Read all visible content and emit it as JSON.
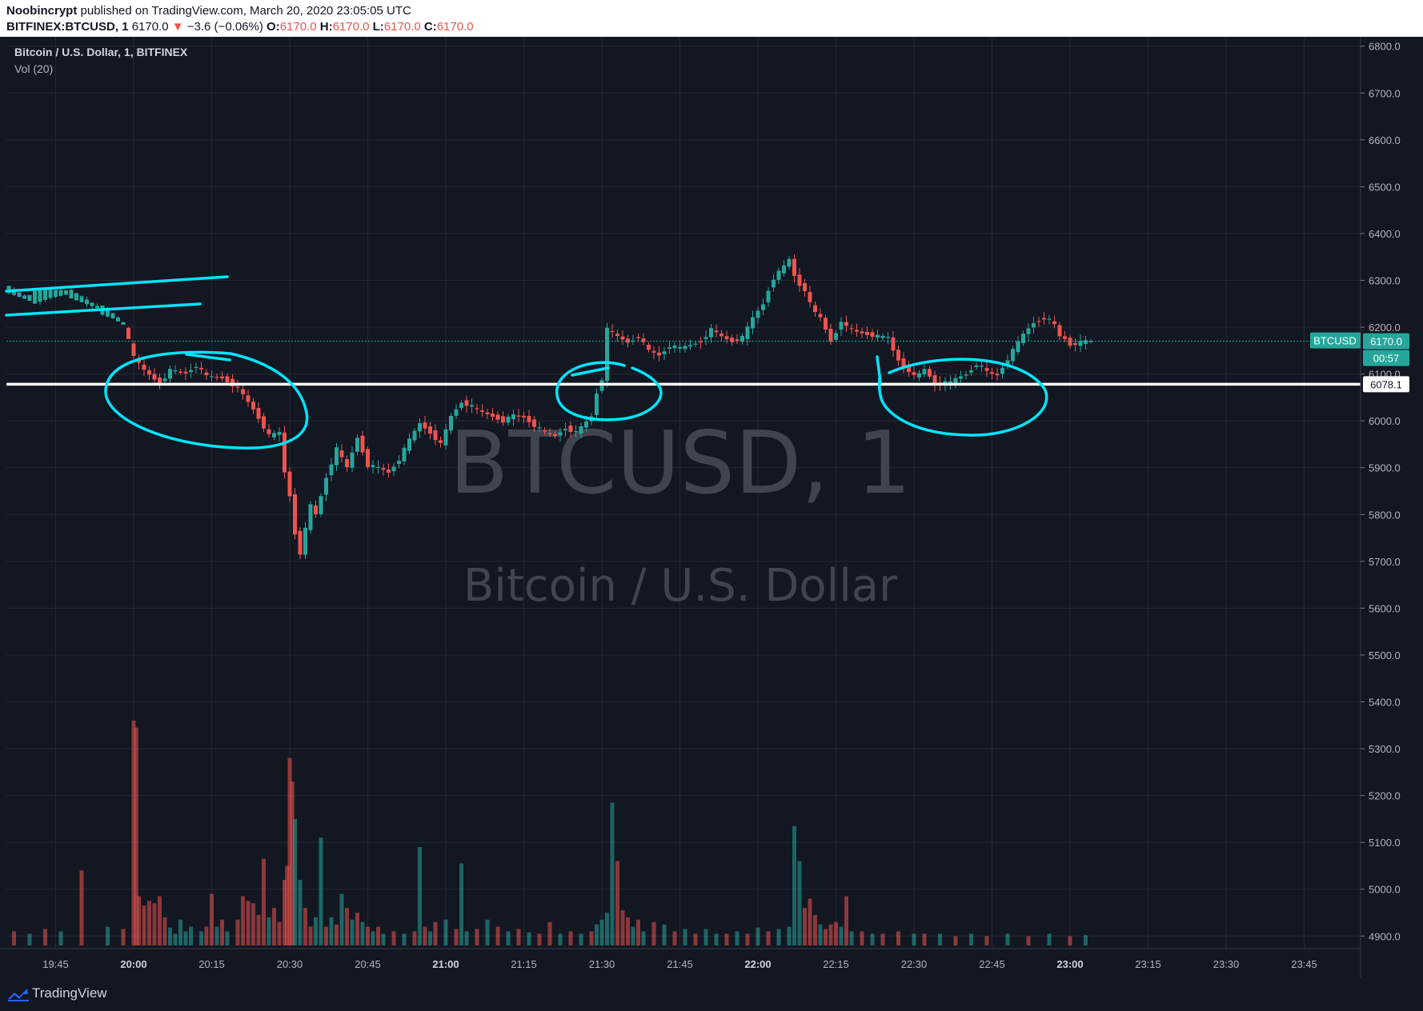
{
  "header": {
    "author": "Noobincrypt",
    "published": "published on TradingView.com, March 20, 2020 23:05:05 UTC",
    "symbol": "BITFINEX:BTCUSD, 1",
    "last": "6170.0",
    "arrow": "▼",
    "change": "−3.6 (−0.06%)",
    "o_label": "O:",
    "o": "6170.0",
    "h_label": "H:",
    "h": "6170.0",
    "l_label": "L:",
    "l": "6170.0",
    "c_label": "C:",
    "c": "6170.0"
  },
  "legend": {
    "main": "Bitcoin / U.S. Dollar, 1, BITFINEX",
    "volume": "Vol (20)"
  },
  "watermark": {
    "line1": "BTCUSD, 1",
    "line2": "Bitcoin / U.S. Dollar"
  },
  "price_labels": {
    "symbol_tag": "BTCUSD",
    "last_price": "6170.0",
    "countdown": "00:57",
    "line_price": "6078.1"
  },
  "footer": {
    "brand": "TradingView"
  },
  "colors": {
    "background": "#131722",
    "grid": "#242936",
    "up": "#26a69a",
    "down": "#ef5350",
    "annotation": "#00e5ff",
    "hline": "#ffffff"
  },
  "chart_data": {
    "type": "candlestick",
    "interval": "1 minute",
    "y_ticks": [
      "6800.0",
      "6700.0",
      "6600.0",
      "6500.0",
      "6400.0",
      "6300.0",
      "6200.0",
      "6100.0",
      "6000.0",
      "5900.0",
      "5800.0",
      "5700.0",
      "5600.0",
      "5500.0",
      "5400.0",
      "5300.0",
      "5200.0",
      "5100.0",
      "5000.0",
      "4900.0"
    ],
    "ylim": [
      4880,
      6820
    ],
    "x_ticks": [
      {
        "label": "19:45",
        "m": -15,
        "bold": false
      },
      {
        "label": "20:00",
        "m": 0,
        "bold": true
      },
      {
        "label": "20:15",
        "m": 15,
        "bold": false
      },
      {
        "label": "20:30",
        "m": 30,
        "bold": false
      },
      {
        "label": "20:45",
        "m": 45,
        "bold": false
      },
      {
        "label": "21:00",
        "m": 60,
        "bold": true
      },
      {
        "label": "21:15",
        "m": 75,
        "bold": false
      },
      {
        "label": "21:30",
        "m": 90,
        "bold": false
      },
      {
        "label": "21:45",
        "m": 105,
        "bold": false
      },
      {
        "label": "22:00",
        "m": 120,
        "bold": true
      },
      {
        "label": "22:15",
        "m": 135,
        "bold": false
      },
      {
        "label": "22:30",
        "m": 150,
        "bold": false
      },
      {
        "label": "22:45",
        "m": 165,
        "bold": false
      },
      {
        "label": "23:00",
        "m": 180,
        "bold": true
      },
      {
        "label": "23:15",
        "m": 195,
        "bold": false
      },
      {
        "label": "23:30",
        "m": 210,
        "bold": false
      },
      {
        "label": "23:45",
        "m": 225,
        "bold": false
      }
    ],
    "price_path": [
      [
        -24,
        6285
      ],
      [
        -20,
        6262
      ],
      [
        -16,
        6272
      ],
      [
        -12,
        6275
      ],
      [
        -9,
        6258
      ],
      [
        -4,
        6230
      ],
      [
        -1,
        6205
      ],
      [
        1,
        6135
      ],
      [
        3,
        6108
      ],
      [
        6,
        6080
      ],
      [
        8,
        6108
      ],
      [
        11,
        6102
      ],
      [
        13,
        6118
      ],
      [
        15,
        6095
      ],
      [
        18,
        6092
      ],
      [
        21,
        6070
      ],
      [
        24,
        6025
      ],
      [
        27,
        5968
      ],
      [
        29,
        5975
      ],
      [
        30,
        5890
      ],
      [
        31,
        5840
      ],
      [
        32,
        5760
      ],
      [
        33,
        5718
      ],
      [
        35,
        5820
      ],
      [
        36,
        5800
      ],
      [
        38,
        5880
      ],
      [
        40,
        5940
      ],
      [
        42,
        5900
      ],
      [
        44,
        5965
      ],
      [
        46,
        5905
      ],
      [
        48,
        5900
      ],
      [
        50,
        5890
      ],
      [
        52,
        5918
      ],
      [
        54,
        5960
      ],
      [
        56,
        5995
      ],
      [
        58,
        5975
      ],
      [
        60,
        5950
      ],
      [
        62,
        6010
      ],
      [
        64,
        6040
      ],
      [
        66,
        6030
      ],
      [
        68,
        6018
      ],
      [
        70,
        6010
      ],
      [
        72,
        6000
      ],
      [
        74,
        6012
      ],
      [
        76,
        6008
      ],
      [
        78,
        5990
      ],
      [
        80,
        5975
      ],
      [
        82,
        5968
      ],
      [
        84,
        5985
      ],
      [
        86,
        5975
      ],
      [
        88,
        5998
      ],
      [
        89,
        6010
      ],
      [
        90,
        6060
      ],
      [
        91,
        6090
      ],
      [
        92,
        6195
      ],
      [
        94,
        6180
      ],
      [
        96,
        6168
      ],
      [
        98,
        6180
      ],
      [
        100,
        6150
      ],
      [
        102,
        6140
      ],
      [
        104,
        6160
      ],
      [
        106,
        6155
      ],
      [
        108,
        6162
      ],
      [
        110,
        6170
      ],
      [
        112,
        6195
      ],
      [
        114,
        6180
      ],
      [
        116,
        6170
      ],
      [
        118,
        6178
      ],
      [
        120,
        6220
      ],
      [
        122,
        6250
      ],
      [
        123,
        6280
      ],
      [
        124,
        6305
      ],
      [
        126,
        6330
      ],
      [
        127,
        6345
      ],
      [
        128,
        6310
      ],
      [
        129,
        6290
      ],
      [
        130,
        6280
      ],
      [
        131,
        6250
      ],
      [
        132,
        6230
      ],
      [
        133,
        6220
      ],
      [
        134,
        6195
      ],
      [
        135,
        6170
      ],
      [
        136,
        6190
      ],
      [
        137,
        6215
      ],
      [
        138,
        6200
      ],
      [
        140,
        6190
      ],
      [
        142,
        6185
      ],
      [
        144,
        6180
      ],
      [
        146,
        6178
      ],
      [
        147,
        6150
      ],
      [
        148,
        6130
      ],
      [
        149,
        6115
      ],
      [
        150,
        6108
      ],
      [
        151,
        6095
      ],
      [
        152,
        6100
      ],
      [
        153,
        6110
      ],
      [
        154,
        6095
      ],
      [
        155,
        6078
      ],
      [
        156,
        6080
      ],
      [
        158,
        6082
      ],
      [
        159,
        6090
      ],
      [
        160,
        6095
      ],
      [
        161,
        6100
      ],
      [
        162,
        6110
      ],
      [
        163,
        6122
      ],
      [
        164,
        6115
      ],
      [
        165,
        6105
      ],
      [
        166,
        6100
      ],
      [
        167,
        6098
      ],
      [
        168,
        6115
      ],
      [
        170,
        6150
      ],
      [
        172,
        6185
      ],
      [
        174,
        6210
      ],
      [
        176,
        6220
      ],
      [
        177,
        6215
      ],
      [
        178,
        6205
      ],
      [
        179,
        6180
      ],
      [
        180,
        6175
      ],
      [
        181,
        6162
      ],
      [
        182,
        6165
      ],
      [
        184,
        6170
      ]
    ],
    "volume": [
      {
        "m": -23,
        "v": 4910,
        "up": false
      },
      {
        "m": -20,
        "v": 4905,
        "up": true
      },
      {
        "m": -17,
        "v": 4915,
        "up": false
      },
      {
        "m": -14,
        "v": 4910,
        "up": true
      },
      {
        "m": -10,
        "v": 5040,
        "up": false
      },
      {
        "m": -5,
        "v": 4920,
        "up": true
      },
      {
        "m": -2,
        "v": 4915,
        "up": false
      },
      {
        "m": 0,
        "v": 5360,
        "up": false
      },
      {
        "m": 0.5,
        "v": 5345,
        "up": false
      },
      {
        "m": 1,
        "v": 4985,
        "up": false
      },
      {
        "m": 2,
        "v": 4965,
        "up": false
      },
      {
        "m": 3,
        "v": 4975,
        "up": false
      },
      {
        "m": 4,
        "v": 4970,
        "up": false
      },
      {
        "m": 5,
        "v": 4985,
        "up": false
      },
      {
        "m": 6,
        "v": 4940,
        "up": false
      },
      {
        "m": 7,
        "v": 4918,
        "up": true
      },
      {
        "m": 8,
        "v": 4905,
        "up": true
      },
      {
        "m": 9,
        "v": 4935,
        "up": true
      },
      {
        "m": 10,
        "v": 4910,
        "up": true
      },
      {
        "m": 11,
        "v": 4920,
        "up": true
      },
      {
        "m": 13,
        "v": 4910,
        "up": true
      },
      {
        "m": 14,
        "v": 4920,
        "up": false
      },
      {
        "m": 15,
        "v": 4990,
        "up": false
      },
      {
        "m": 16,
        "v": 4920,
        "up": true
      },
      {
        "m": 17,
        "v": 4935,
        "up": false
      },
      {
        "m": 18,
        "v": 4910,
        "up": true
      },
      {
        "m": 20,
        "v": 4935,
        "up": false
      },
      {
        "m": 21,
        "v": 4985,
        "up": false
      },
      {
        "m": 22,
        "v": 4975,
        "up": false
      },
      {
        "m": 23,
        "v": 4970,
        "up": false
      },
      {
        "m": 24,
        "v": 4945,
        "up": false
      },
      {
        "m": 25,
        "v": 5065,
        "up": false
      },
      {
        "m": 26,
        "v": 4940,
        "up": true
      },
      {
        "m": 27,
        "v": 4960,
        "up": false
      },
      {
        "m": 28,
        "v": 4930,
        "up": false
      },
      {
        "m": 29,
        "v": 5020,
        "up": false
      },
      {
        "m": 29.5,
        "v": 5050,
        "up": false
      },
      {
        "m": 30,
        "v": 5280,
        "up": false
      },
      {
        "m": 30.5,
        "v": 5230,
        "up": false
      },
      {
        "m": 31,
        "v": 5150,
        "up": true
      },
      {
        "m": 32,
        "v": 5020,
        "up": true
      },
      {
        "m": 33,
        "v": 4960,
        "up": false
      },
      {
        "m": 34,
        "v": 4920,
        "up": false
      },
      {
        "m": 35,
        "v": 4940,
        "up": true
      },
      {
        "m": 36,
        "v": 5110,
        "up": true
      },
      {
        "m": 37,
        "v": 4920,
        "up": false
      },
      {
        "m": 38,
        "v": 4940,
        "up": true
      },
      {
        "m": 39,
        "v": 4925,
        "up": false
      },
      {
        "m": 40,
        "v": 4990,
        "up": true
      },
      {
        "m": 41,
        "v": 4960,
        "up": false
      },
      {
        "m": 42,
        "v": 4935,
        "up": true
      },
      {
        "m": 43,
        "v": 4950,
        "up": false
      },
      {
        "m": 44,
        "v": 4930,
        "up": true
      },
      {
        "m": 45,
        "v": 4920,
        "up": false
      },
      {
        "m": 46,
        "v": 4910,
        "up": true
      },
      {
        "m": 47,
        "v": 4920,
        "up": false
      },
      {
        "m": 48,
        "v": 4905,
        "up": true
      },
      {
        "m": 50,
        "v": 4910,
        "up": false
      },
      {
        "m": 52,
        "v": 4905,
        "up": true
      },
      {
        "m": 54,
        "v": 4910,
        "up": false
      },
      {
        "m": 55,
        "v": 5090,
        "up": true
      },
      {
        "m": 56,
        "v": 4920,
        "up": false
      },
      {
        "m": 57,
        "v": 4910,
        "up": true
      },
      {
        "m": 58,
        "v": 4930,
        "up": false
      },
      {
        "m": 60,
        "v": 4935,
        "up": true
      },
      {
        "m": 62,
        "v": 4915,
        "up": false
      },
      {
        "m": 63,
        "v": 5055,
        "up": true
      },
      {
        "m": 64,
        "v": 4910,
        "up": true
      },
      {
        "m": 66,
        "v": 4915,
        "up": false
      },
      {
        "m": 68,
        "v": 4935,
        "up": true
      },
      {
        "m": 70,
        "v": 4920,
        "up": false
      },
      {
        "m": 72,
        "v": 4910,
        "up": true
      },
      {
        "m": 74,
        "v": 4915,
        "up": false
      },
      {
        "m": 76,
        "v": 4908,
        "up": true
      },
      {
        "m": 78,
        "v": 4905,
        "up": false
      },
      {
        "m": 80,
        "v": 4930,
        "up": false
      },
      {
        "m": 82,
        "v": 4905,
        "up": true
      },
      {
        "m": 84,
        "v": 4910,
        "up": false
      },
      {
        "m": 86,
        "v": 4905,
        "up": true
      },
      {
        "m": 88,
        "v": 4910,
        "up": false
      },
      {
        "m": 89,
        "v": 4925,
        "up": true
      },
      {
        "m": 90,
        "v": 4935,
        "up": true
      },
      {
        "m": 91,
        "v": 4950,
        "up": true
      },
      {
        "m": 92,
        "v": 5185,
        "up": true
      },
      {
        "m": 93,
        "v": 5060,
        "up": false
      },
      {
        "m": 94,
        "v": 4955,
        "up": false
      },
      {
        "m": 95,
        "v": 4940,
        "up": false
      },
      {
        "m": 96,
        "v": 4920,
        "up": true
      },
      {
        "m": 97,
        "v": 4935,
        "up": false
      },
      {
        "m": 98,
        "v": 4910,
        "up": true
      },
      {
        "m": 100,
        "v": 4930,
        "up": false
      },
      {
        "m": 102,
        "v": 4925,
        "up": true
      },
      {
        "m": 104,
        "v": 4910,
        "up": false
      },
      {
        "m": 106,
        "v": 4915,
        "up": true
      },
      {
        "m": 108,
        "v": 4905,
        "up": false
      },
      {
        "m": 110,
        "v": 4915,
        "up": true
      },
      {
        "m": 112,
        "v": 4905,
        "up": true
      },
      {
        "m": 114,
        "v": 4905,
        "up": false
      },
      {
        "m": 116,
        "v": 4910,
        "up": true
      },
      {
        "m": 118,
        "v": 4905,
        "up": false
      },
      {
        "m": 120,
        "v": 4918,
        "up": true
      },
      {
        "m": 122,
        "v": 4910,
        "up": false
      },
      {
        "m": 124,
        "v": 4915,
        "up": true
      },
      {
        "m": 126,
        "v": 4920,
        "up": true
      },
      {
        "m": 127,
        "v": 5135,
        "up": true
      },
      {
        "m": 128,
        "v": 5060,
        "up": true
      },
      {
        "m": 129,
        "v": 4960,
        "up": false
      },
      {
        "m": 130,
        "v": 4980,
        "up": false
      },
      {
        "m": 131,
        "v": 4945,
        "up": false
      },
      {
        "m": 132,
        "v": 4925,
        "up": true
      },
      {
        "m": 133,
        "v": 4915,
        "up": false
      },
      {
        "m": 134,
        "v": 4925,
        "up": false
      },
      {
        "m": 135,
        "v": 4930,
        "up": false
      },
      {
        "m": 136,
        "v": 4920,
        "up": true
      },
      {
        "m": 137,
        "v": 4985,
        "up": false
      },
      {
        "m": 138,
        "v": 4910,
        "up": true
      },
      {
        "m": 140,
        "v": 4910,
        "up": false
      },
      {
        "m": 142,
        "v": 4905,
        "up": true
      },
      {
        "m": 144,
        "v": 4905,
        "up": false
      },
      {
        "m": 147,
        "v": 4910,
        "up": false
      },
      {
        "m": 150,
        "v": 4905,
        "up": true
      },
      {
        "m": 152,
        "v": 4905,
        "up": false
      },
      {
        "m": 155,
        "v": 4905,
        "up": true
      },
      {
        "m": 158,
        "v": 4900,
        "up": false
      },
      {
        "m": 161,
        "v": 4905,
        "up": true
      },
      {
        "m": 164,
        "v": 4900,
        "up": false
      },
      {
        "m": 168,
        "v": 4905,
        "up": true
      },
      {
        "m": 172,
        "v": 4900,
        "up": false
      },
      {
        "m": 176,
        "v": 4905,
        "up": true
      },
      {
        "m": 180,
        "v": 4900,
        "up": false
      },
      {
        "m": 183,
        "v": 4902,
        "up": true
      }
    ],
    "last_price": 6170.0,
    "horizontal_line": 6078.1
  }
}
